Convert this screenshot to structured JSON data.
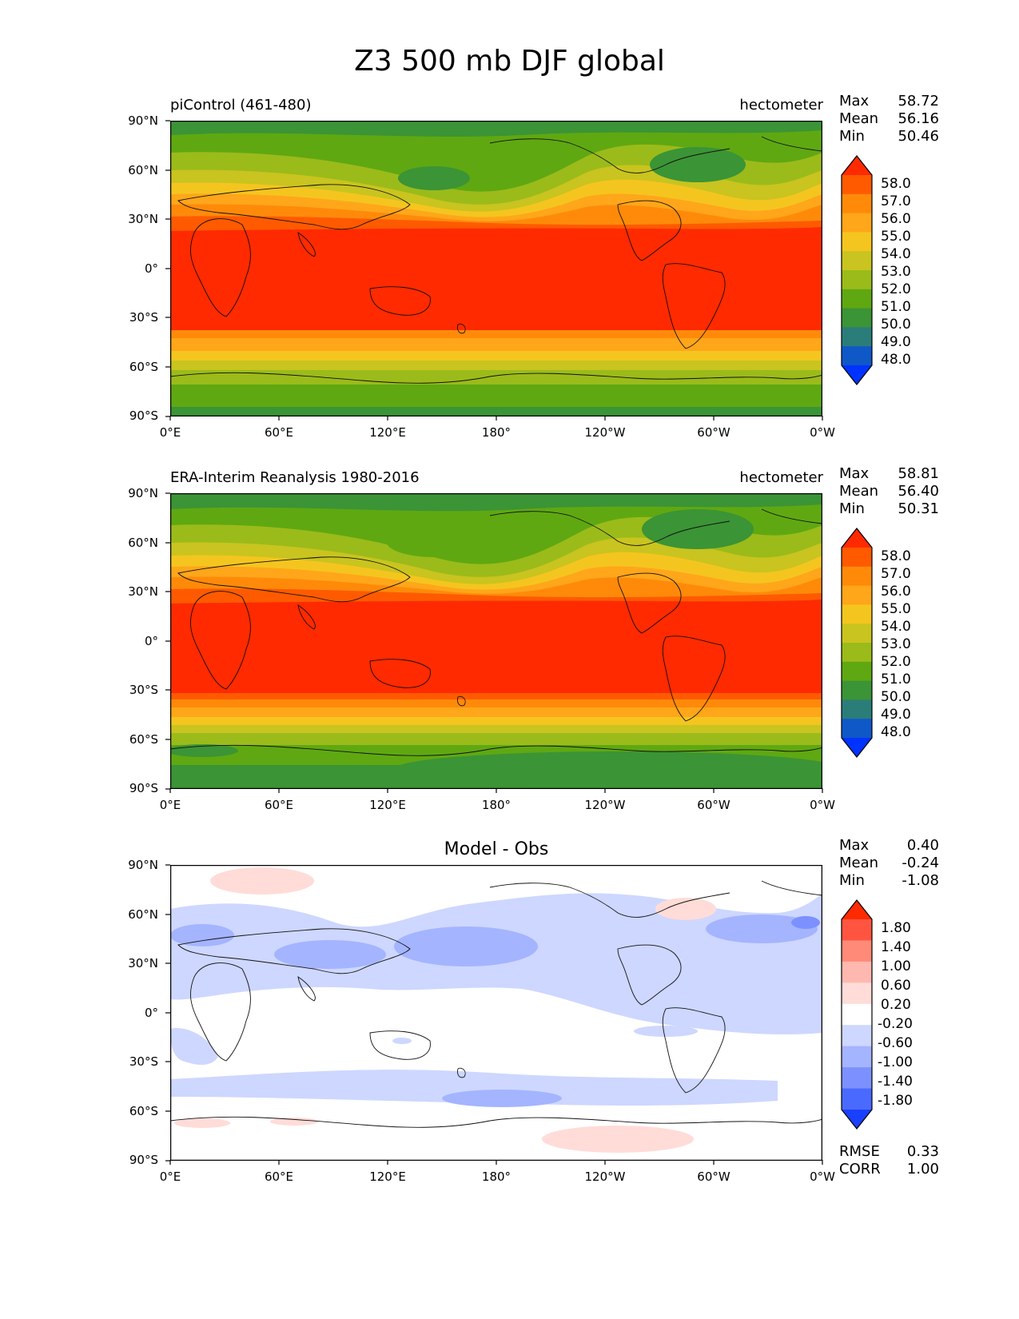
{
  "title": "Z3 500 mb DJF global",
  "chart_data": [
    {
      "type": "heatmap",
      "panel": "test",
      "left_label": "piControl (461-480)",
      "units": "hectometer",
      "stats": {
        "max_label": "Max",
        "max": "58.72",
        "mean_label": "Mean",
        "mean": "56.16",
        "min_label": "Min",
        "min": "50.46"
      },
      "xticks": [
        "0°E",
        "60°E",
        "120°E",
        "180°",
        "120°W",
        "60°W",
        "0°W"
      ],
      "yticks": [
        "90°N",
        "60°N",
        "30°N",
        "0°",
        "30°S",
        "60°S",
        "90°S"
      ],
      "colorbar_ticks": [
        "58.0",
        "57.0",
        "56.0",
        "55.0",
        "54.0",
        "53.0",
        "52.0",
        "51.0",
        "50.0",
        "49.0",
        "48.0"
      ],
      "colorbar_colors": [
        "#ff2a00",
        "#ff5a00",
        "#ff8a0a",
        "#ffa61a",
        "#f5c51f",
        "#c9c41f",
        "#9bbb1a",
        "#5fa812",
        "#3b9435",
        "#2b7d7a",
        "#0f58c8",
        "#0033ff"
      ]
    },
    {
      "type": "heatmap",
      "panel": "reference",
      "left_label": "ERA-Interim Reanalysis 1980-2016",
      "units": "hectometer",
      "stats": {
        "max_label": "Max",
        "max": "58.81",
        "mean_label": "Mean",
        "mean": "56.40",
        "min_label": "Min",
        "min": "50.31"
      },
      "xticks": [
        "0°E",
        "60°E",
        "120°E",
        "180°",
        "120°W",
        "60°W",
        "0°W"
      ],
      "yticks": [
        "90°N",
        "60°N",
        "30°N",
        "0°",
        "30°S",
        "60°S",
        "90°S"
      ],
      "colorbar_ticks": [
        "58.0",
        "57.0",
        "56.0",
        "55.0",
        "54.0",
        "53.0",
        "52.0",
        "51.0",
        "50.0",
        "49.0",
        "48.0"
      ],
      "colorbar_colors": [
        "#ff2a00",
        "#ff5a00",
        "#ff8a0a",
        "#ffa61a",
        "#f5c51f",
        "#c9c41f",
        "#9bbb1a",
        "#5fa812",
        "#3b9435",
        "#2b7d7a",
        "#0f58c8",
        "#0033ff"
      ]
    },
    {
      "type": "heatmap",
      "panel": "difference",
      "title": "Model - Obs",
      "stats": {
        "max_label": "Max",
        "max": "0.40",
        "mean_label": "Mean",
        "mean": "-0.24",
        "min_label": "Min",
        "min": "-1.08",
        "rmse_label": "RMSE",
        "rmse": "0.33",
        "corr_label": "CORR",
        "corr": "1.00"
      },
      "xticks": [
        "0°E",
        "60°E",
        "120°E",
        "180°",
        "120°W",
        "60°W",
        "0°W"
      ],
      "yticks": [
        "90°N",
        "60°N",
        "30°N",
        "0°",
        "30°S",
        "60°S",
        "90°S"
      ],
      "colorbar_ticks": [
        "1.80",
        "1.40",
        "1.00",
        "0.60",
        "0.20",
        "-0.20",
        "-0.60",
        "-1.00",
        "-1.40",
        "-1.80"
      ],
      "colorbar_colors": [
        "#ff2a00",
        "#ff5540",
        "#ff8a78",
        "#ffb8b0",
        "#ffdcd8",
        "#ffffff",
        "#cdd7ff",
        "#a4b4ff",
        "#7c91ff",
        "#4a6aff",
        "#1a40ff"
      ]
    }
  ]
}
